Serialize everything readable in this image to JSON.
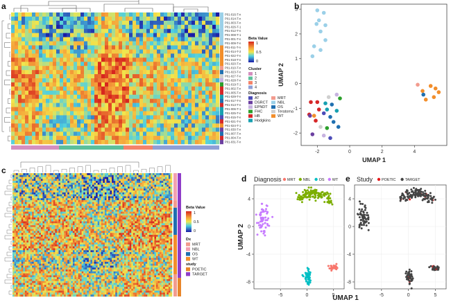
{
  "panels": {
    "a": "a",
    "b": "b",
    "c": "c",
    "d": "d",
    "e": "e"
  },
  "colors": {
    "beta_low": "#1a1aa6",
    "beta_mid": "#f2e64c",
    "beta_high": "#d7261e",
    "cluster": [
      "#d48fbf",
      "#5cbf9b",
      "#f4836a",
      "#8f9fd6"
    ],
    "AT": "#4c4cb8",
    "DSRCT": "#6b3fa0",
    "EPNDT": "#c7b3e0",
    "FHC": "#2ca02c",
    "HB": "#d62728",
    "Hodgkins": "#17a0b0",
    "MRT": "#f29b8e",
    "NBL": "#9bd0e8",
    "OS": "#1f6fb0",
    "Teratoma": "#cfcfcf",
    "WT": "#f28e2b",
    "POETIC": "#e8862a",
    "TARGET": "#8e3cc8",
    "d_MRT": "#f8766d",
    "d_NBL": "#7cae00",
    "d_OS": "#00bfc4",
    "d_WT": "#c77cff",
    "e_POETIC": "#e41a1c",
    "e_TARGET": "#444444"
  },
  "panel_a": {
    "sample_labels": [
      "P01-016-T-n",
      "P01-014-T-n",
      "P01-003-T-n",
      "P01-026-T-1",
      "P01-012-T-n",
      "P01-008-T-1",
      "P01-001-T-n",
      "P01-009-T-n",
      "P01-011-T-n",
      "P01-014-T-2",
      "P01-022-T-n",
      "P01-018-T-n",
      "P01-020-T-n",
      "P01-010-T-n",
      "P01-023-T-n",
      "P01-027-T-n",
      "P01-028-T-n",
      "P01-019-T-1",
      "P01-002-T-n",
      "P01-005-T-n",
      "P01-029-T-n",
      "P01-017-T-n",
      "P01-013-T-n",
      "P01-006-T-1",
      "P01-025-T-n",
      "P01-015-T-n",
      "P01-021-T-n",
      "P01-024-T-1",
      "P01-030-T-n",
      "P01-007-T-n",
      "P01-004-T-n",
      "P01-031-T-n"
    ],
    "legend_beta_title": "Beta Value",
    "beta_ticks": [
      "1",
      "0.5",
      "0"
    ],
    "legend_cluster_title": "Cluster",
    "cluster_items": [
      "1",
      "2",
      "3",
      "4"
    ],
    "legend_diag_title": "Diagnosis",
    "diag_items_col1": [
      "AT",
      "DSRCT",
      "EPNDT",
      "FHC",
      "HB",
      "Hodgkins"
    ],
    "diag_items_col2": [
      "MRT",
      "NBL",
      "OS",
      "Teratoma",
      "WT"
    ]
  },
  "panel_c": {
    "legend_beta_title": "Beta Value",
    "beta_ticks": [
      "1",
      "0.5",
      "0"
    ],
    "legend_dx_title": "Dx",
    "dx_items": [
      "MRT",
      "NBL",
      "OS",
      "WT"
    ],
    "legend_study_title": "study",
    "study_items": [
      "POETIC",
      "TARGET"
    ]
  },
  "chart_data": [
    {
      "type": "scatter",
      "panel": "b",
      "xlabel": "UMAP 1",
      "ylabel": "UMAP 2",
      "xlim": [
        -3,
        6
      ],
      "ylim": [
        -2.5,
        3.2
      ],
      "xticks": [
        "-2",
        "0",
        "2",
        "4"
      ],
      "yticks": [
        "-2",
        "-1",
        "0",
        "1",
        "2",
        "3"
      ],
      "points": [
        {
          "x": -2.0,
          "y": 2.95,
          "c": "NBL"
        },
        {
          "x": -1.6,
          "y": 2.85,
          "c": "NBL"
        },
        {
          "x": -1.9,
          "y": 2.55,
          "c": "NBL"
        },
        {
          "x": -2.05,
          "y": 2.4,
          "c": "NBL"
        },
        {
          "x": -1.5,
          "y": 2.35,
          "c": "NBL"
        },
        {
          "x": -1.8,
          "y": 2.1,
          "c": "NBL"
        },
        {
          "x": -1.5,
          "y": 1.75,
          "c": "NBL"
        },
        {
          "x": -2.2,
          "y": 1.5,
          "c": "NBL"
        },
        {
          "x": -1.8,
          "y": 1.35,
          "c": "NBL"
        },
        {
          "x": -2.3,
          "y": 1.1,
          "c": "NBL"
        },
        {
          "x": 4.5,
          "y": -0.3,
          "c": "WT"
        },
        {
          "x": 5.0,
          "y": -0.1,
          "c": "WT"
        },
        {
          "x": 5.3,
          "y": -0.2,
          "c": "WT"
        },
        {
          "x": 5.5,
          "y": -0.35,
          "c": "WT"
        },
        {
          "x": 5.2,
          "y": -0.55,
          "c": "WT"
        },
        {
          "x": 4.7,
          "y": -0.65,
          "c": "WT"
        },
        {
          "x": 4.2,
          "y": -0.05,
          "c": "MRT"
        },
        {
          "x": 4.55,
          "y": -0.45,
          "c": "OS"
        },
        {
          "x": -1.3,
          "y": -0.55,
          "c": "Teratoma"
        },
        {
          "x": -0.8,
          "y": -0.45,
          "c": "EPNDT"
        },
        {
          "x": -0.6,
          "y": -0.6,
          "c": "FHC"
        },
        {
          "x": -2.4,
          "y": -0.75,
          "c": "HB"
        },
        {
          "x": -2.0,
          "y": -0.75,
          "c": "HB"
        },
        {
          "x": -1.5,
          "y": -0.8,
          "c": "Hodgkins"
        },
        {
          "x": -1.1,
          "y": -0.85,
          "c": "OS"
        },
        {
          "x": -1.9,
          "y": -1.05,
          "c": "HB"
        },
        {
          "x": -1.4,
          "y": -1.05,
          "c": "Hodgkins"
        },
        {
          "x": -0.8,
          "y": -1.1,
          "c": "Hodgkins"
        },
        {
          "x": -1.6,
          "y": -1.2,
          "c": "AT"
        },
        {
          "x": -2.5,
          "y": -1.25,
          "c": "HB"
        },
        {
          "x": -2.2,
          "y": -1.3,
          "c": "WT"
        },
        {
          "x": -2.45,
          "y": -1.3,
          "c": "DSRCT"
        },
        {
          "x": -1.2,
          "y": -1.35,
          "c": "OS"
        },
        {
          "x": -2.1,
          "y": -1.5,
          "c": "HB"
        },
        {
          "x": -1.0,
          "y": -1.55,
          "c": "OS"
        },
        {
          "x": -1.8,
          "y": -1.75,
          "c": "Teratoma"
        },
        {
          "x": -0.7,
          "y": -1.75,
          "c": "OS"
        },
        {
          "x": -1.4,
          "y": -1.8,
          "c": "FHC"
        },
        {
          "x": -2.3,
          "y": -2.05,
          "c": "DSRCT"
        },
        {
          "x": -1.6,
          "y": -2.1,
          "c": "EPNDT"
        },
        {
          "x": -1.2,
          "y": -2.2,
          "c": "AT"
        }
      ]
    },
    {
      "type": "scatter",
      "panel": "d",
      "legend_title": "Diagnosis",
      "legend_items": [
        "MRT",
        "NBL",
        "OS",
        "WT"
      ],
      "xlabel": "",
      "ylabel": "UMAP 2",
      "xlim": [
        -10,
        7
      ],
      "ylim": [
        -9,
        6
      ],
      "xticks": [
        "-5",
        "0",
        "5"
      ],
      "yticks": [
        "4",
        "0",
        "-4",
        "-8"
      ],
      "clusters": [
        {
          "c": "NBL",
          "cx": 1.5,
          "cy": 4.2,
          "sx": 1.6,
          "sy": 0.7,
          "n": 130,
          "shape": "arc"
        },
        {
          "c": "WT",
          "cx": -8.3,
          "cy": 1.0,
          "sx": 0.5,
          "sy": 1.1,
          "n": 60,
          "shape": "blob"
        },
        {
          "c": "OS",
          "cx": 0.2,
          "cy": -7.4,
          "sx": 0.35,
          "sy": 0.5,
          "n": 50,
          "shape": "blob"
        },
        {
          "c": "MRT",
          "cx": 5.0,
          "cy": -6.0,
          "sx": 0.45,
          "sy": 0.18,
          "n": 30,
          "shape": "blob"
        }
      ]
    },
    {
      "type": "scatter",
      "panel": "e",
      "legend_title": "Study",
      "legend_items": [
        "POETIC",
        "TARGET"
      ],
      "xlabel": "",
      "ylabel": "",
      "xlim": [
        -10,
        7
      ],
      "ylim": [
        -9,
        6
      ],
      "xticks": [
        "-5",
        "0",
        "5"
      ],
      "yticks": [
        "4",
        "0",
        "-4",
        "-8"
      ],
      "clusters": [
        {
          "c": "TARGET",
          "cx": 1.5,
          "cy": 4.2,
          "sx": 1.6,
          "sy": 0.7,
          "n": 130,
          "shape": "arc",
          "poetic": 8
        },
        {
          "c": "TARGET",
          "cx": -8.3,
          "cy": 1.0,
          "sx": 0.5,
          "sy": 1.1,
          "n": 60,
          "shape": "blob",
          "poetic": 0
        },
        {
          "c": "TARGET",
          "cx": 0.2,
          "cy": -7.4,
          "sx": 0.35,
          "sy": 0.5,
          "n": 50,
          "shape": "blob",
          "poetic": 4
        },
        {
          "c": "TARGET",
          "cx": 5.0,
          "cy": -6.0,
          "sx": 0.45,
          "sy": 0.18,
          "n": 30,
          "shape": "blob",
          "poetic": 5
        }
      ]
    }
  ],
  "bottom_axis_label": "UMAP 1"
}
